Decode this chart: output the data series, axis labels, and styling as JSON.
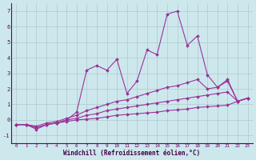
{
  "xlabel": "Windchill (Refroidissement éolien,°C)",
  "bg_color": "#cde8ed",
  "line_color": "#993399",
  "grid_color": "#b0c8cc",
  "xlim": [
    -0.5,
    23.5
  ],
  "ylim": [
    -1.5,
    7.5
  ],
  "xticks": [
    0,
    1,
    2,
    3,
    4,
    5,
    6,
    7,
    8,
    9,
    10,
    11,
    12,
    13,
    14,
    15,
    16,
    17,
    18,
    19,
    20,
    21,
    22,
    23
  ],
  "yticks": [
    -1,
    0,
    1,
    2,
    3,
    4,
    5,
    6,
    7
  ],
  "series": [
    {
      "x": [
        0,
        1,
        2,
        3,
        4,
        5,
        6,
        7,
        8,
        9,
        10,
        11,
        12,
        13,
        14,
        15,
        16,
        17,
        18,
        19,
        20,
        21,
        22,
        23
      ],
      "y": [
        -0.3,
        -0.3,
        -0.6,
        -0.3,
        -0.2,
        0.0,
        0.5,
        3.2,
        3.5,
        3.2,
        3.9,
        1.7,
        2.5,
        4.5,
        4.2,
        6.8,
        7.0,
        4.8,
        5.4,
        2.9,
        2.1,
        2.6,
        1.2,
        1.4
      ]
    },
    {
      "x": [
        0,
        1,
        2,
        3,
        4,
        5,
        6,
        7,
        8,
        9,
        10,
        11,
        12,
        13,
        14,
        15,
        16,
        17,
        18,
        19,
        20,
        21,
        22,
        23
      ],
      "y": [
        -0.3,
        -0.3,
        -0.4,
        -0.2,
        -0.1,
        0.1,
        0.3,
        0.6,
        0.8,
        1.0,
        1.2,
        1.3,
        1.5,
        1.7,
        1.9,
        2.1,
        2.2,
        2.4,
        2.6,
        2.0,
        2.1,
        2.5,
        1.2,
        1.4
      ]
    },
    {
      "x": [
        0,
        1,
        2,
        3,
        4,
        5,
        6,
        7,
        8,
        9,
        10,
        11,
        12,
        13,
        14,
        15,
        16,
        17,
        18,
        19,
        20,
        21,
        22,
        23
      ],
      "y": [
        -0.3,
        -0.3,
        -0.5,
        -0.3,
        -0.2,
        0.0,
        0.1,
        0.3,
        0.4,
        0.6,
        0.7,
        0.8,
        0.9,
        1.0,
        1.1,
        1.2,
        1.3,
        1.4,
        1.5,
        1.6,
        1.7,
        1.8,
        1.2,
        1.4
      ]
    },
    {
      "x": [
        0,
        1,
        2,
        3,
        4,
        5,
        6,
        7,
        8,
        9,
        10,
        11,
        12,
        13,
        14,
        15,
        16,
        17,
        18,
        19,
        20,
        21,
        22,
        23
      ],
      "y": [
        -0.3,
        -0.3,
        -0.5,
        -0.3,
        -0.2,
        -0.1,
        0.0,
        0.05,
        0.1,
        0.2,
        0.3,
        0.35,
        0.4,
        0.45,
        0.5,
        0.6,
        0.65,
        0.7,
        0.8,
        0.85,
        0.9,
        0.95,
        1.2,
        1.4
      ]
    }
  ]
}
